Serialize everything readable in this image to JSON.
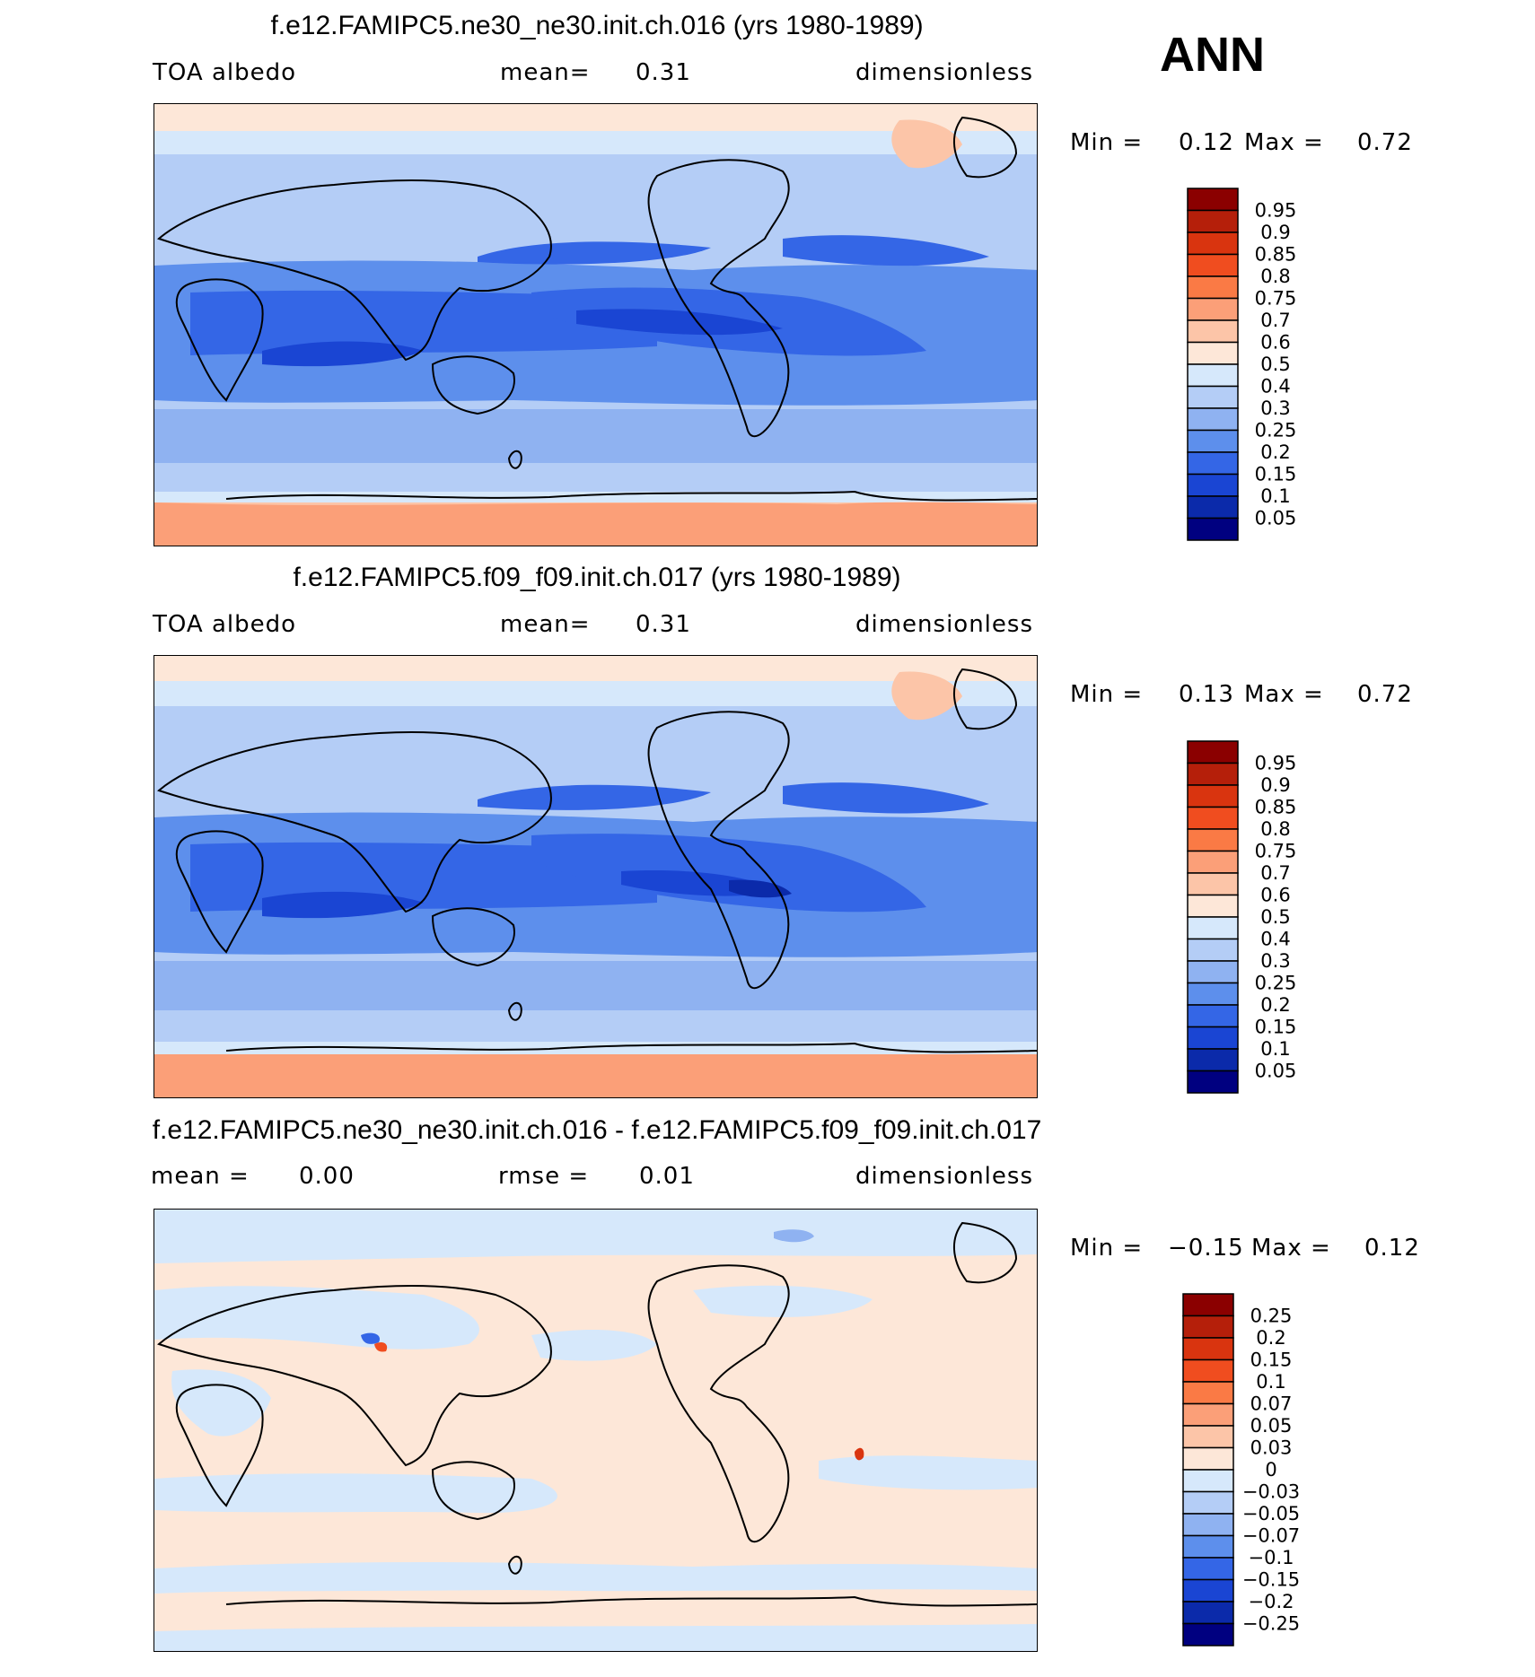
{
  "season_label": "ANN",
  "panels": [
    {
      "title": "f.e12.FAMIPC5.ne30_ne30.init.ch.016 (yrs 1980-1989)",
      "left_label": "TOA albedo",
      "center_label": "mean=",
      "center_value": "0.31",
      "right_label": "dimensionless",
      "min_label": "Min =",
      "min_value": "0.12",
      "max_label": "Max =",
      "max_value": "0.72",
      "colorbar_labels": [
        "0.95",
        "0.9",
        "0.85",
        "0.8",
        "0.75",
        "0.7",
        "0.6",
        "0.5",
        "0.4",
        "0.3",
        "0.25",
        "0.2",
        "0.15",
        "0.1",
        "0.05"
      ],
      "colorbar_colors": [
        "#8b0000",
        "#b51f0a",
        "#d9340f",
        "#f04d1f",
        "#fa7a45",
        "#fb9f78",
        "#fcc5a8",
        "#fde7d8",
        "#d6e8fb",
        "#b4cdf6",
        "#8fb2f1",
        "#5d8fec",
        "#3466e6",
        "#1a45d3",
        "#0b2aaa",
        "#000080"
      ]
    },
    {
      "title": "f.e12.FAMIPC5.f09_f09.init.ch.017 (yrs 1980-1989)",
      "left_label": "TOA albedo",
      "center_label": "mean=",
      "center_value": "0.31",
      "right_label": "dimensionless",
      "min_label": "Min =",
      "min_value": "0.13",
      "max_label": "Max =",
      "max_value": "0.72",
      "colorbar_labels": [
        "0.95",
        "0.9",
        "0.85",
        "0.8",
        "0.75",
        "0.7",
        "0.6",
        "0.5",
        "0.4",
        "0.3",
        "0.25",
        "0.2",
        "0.15",
        "0.1",
        "0.05"
      ],
      "colorbar_colors": [
        "#8b0000",
        "#b51f0a",
        "#d9340f",
        "#f04d1f",
        "#fa7a45",
        "#fb9f78",
        "#fcc5a8",
        "#fde7d8",
        "#d6e8fb",
        "#b4cdf6",
        "#8fb2f1",
        "#5d8fec",
        "#3466e6",
        "#1a45d3",
        "#0b2aaa",
        "#000080"
      ]
    },
    {
      "title": "f.e12.FAMIPC5.ne30_ne30.init.ch.016 - f.e12.FAMIPC5.f09_f09.init.ch.017",
      "left_label": "mean =",
      "left_value": "0.00",
      "center_label": "rmse =",
      "center_value": "0.01",
      "right_label": "dimensionless",
      "min_label": "Min =",
      "min_value": "−0.15",
      "max_label": "Max =",
      "max_value": "0.12",
      "colorbar_labels": [
        "0.25",
        "0.2",
        "0.15",
        "0.1",
        "0.07",
        "0.05",
        "0.03",
        "0",
        "−0.03",
        "−0.05",
        "−0.07",
        "−0.1",
        "−0.15",
        "−0.2",
        "−0.25"
      ],
      "colorbar_colors": [
        "#8b0000",
        "#b51f0a",
        "#d9340f",
        "#f04d1f",
        "#fa7a45",
        "#fb9f78",
        "#fcc5a8",
        "#fde7d8",
        "#d6e8fb",
        "#b4cdf6",
        "#8fb2f1",
        "#5d8fec",
        "#3466e6",
        "#1a45d3",
        "#0b2aaa",
        "#000080"
      ]
    }
  ],
  "chart_data": [
    {
      "type": "heatmap",
      "title": "f.e12.FAMIPC5.ne30_ne30.init.ch.016 (yrs 1980-1989)",
      "variable": "TOA albedo",
      "units": "dimensionless",
      "mean": 0.31,
      "min": 0.12,
      "max": 0.72,
      "contour_levels": [
        0.05,
        0.1,
        0.15,
        0.2,
        0.25,
        0.3,
        0.4,
        0.5,
        0.6,
        0.7,
        0.75,
        0.8,
        0.85,
        0.9,
        0.95
      ],
      "season": "ANN"
    },
    {
      "type": "heatmap",
      "title": "f.e12.FAMIPC5.f09_f09.init.ch.017 (yrs 1980-1989)",
      "variable": "TOA albedo",
      "units": "dimensionless",
      "mean": 0.31,
      "min": 0.13,
      "max": 0.72,
      "contour_levels": [
        0.05,
        0.1,
        0.15,
        0.2,
        0.25,
        0.3,
        0.4,
        0.5,
        0.6,
        0.7,
        0.75,
        0.8,
        0.85,
        0.9,
        0.95
      ],
      "season": "ANN"
    },
    {
      "type": "heatmap",
      "title": "f.e12.FAMIPC5.ne30_ne30.init.ch.016 - f.e12.FAMIPC5.f09_f09.init.ch.017",
      "units": "dimensionless",
      "mean": 0.0,
      "rmse": 0.01,
      "min": -0.15,
      "max": 0.12,
      "contour_levels": [
        -0.25,
        -0.2,
        -0.15,
        -0.1,
        -0.07,
        -0.05,
        -0.03,
        0,
        0.03,
        0.05,
        0.07,
        0.1,
        0.15,
        0.2,
        0.25
      ],
      "season": "ANN"
    }
  ]
}
